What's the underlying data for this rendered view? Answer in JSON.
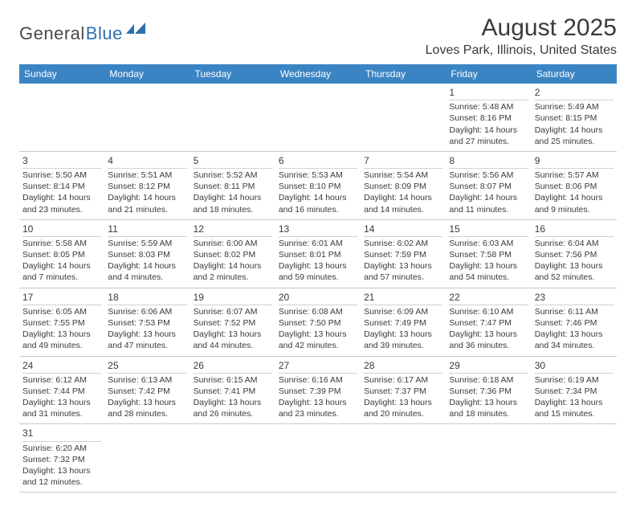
{
  "logo": {
    "dark": "General",
    "blue": "Blue"
  },
  "title": "August 2025",
  "location": "Loves Park, Illinois, United States",
  "header_bg": "#3b84c4",
  "header_fg": "#ffffff",
  "rule_color": "#2e5f93",
  "day_headers": [
    "Sunday",
    "Monday",
    "Tuesday",
    "Wednesday",
    "Thursday",
    "Friday",
    "Saturday"
  ],
  "weeks": [
    [
      {
        "day": "",
        "lines": [
          "",
          "",
          "",
          ""
        ]
      },
      {
        "day": "",
        "lines": [
          "",
          "",
          "",
          ""
        ]
      },
      {
        "day": "",
        "lines": [
          "",
          "",
          "",
          ""
        ]
      },
      {
        "day": "",
        "lines": [
          "",
          "",
          "",
          ""
        ]
      },
      {
        "day": "",
        "lines": [
          "",
          "",
          "",
          ""
        ]
      },
      {
        "day": "1",
        "lines": [
          "Sunrise: 5:48 AM",
          "Sunset: 8:16 PM",
          "Daylight: 14 hours",
          "and 27 minutes."
        ]
      },
      {
        "day": "2",
        "lines": [
          "Sunrise: 5:49 AM",
          "Sunset: 8:15 PM",
          "Daylight: 14 hours",
          "and 25 minutes."
        ]
      }
    ],
    [
      {
        "day": "3",
        "lines": [
          "Sunrise: 5:50 AM",
          "Sunset: 8:14 PM",
          "Daylight: 14 hours",
          "and 23 minutes."
        ]
      },
      {
        "day": "4",
        "lines": [
          "Sunrise: 5:51 AM",
          "Sunset: 8:12 PM",
          "Daylight: 14 hours",
          "and 21 minutes."
        ]
      },
      {
        "day": "5",
        "lines": [
          "Sunrise: 5:52 AM",
          "Sunset: 8:11 PM",
          "Daylight: 14 hours",
          "and 18 minutes."
        ]
      },
      {
        "day": "6",
        "lines": [
          "Sunrise: 5:53 AM",
          "Sunset: 8:10 PM",
          "Daylight: 14 hours",
          "and 16 minutes."
        ]
      },
      {
        "day": "7",
        "lines": [
          "Sunrise: 5:54 AM",
          "Sunset: 8:09 PM",
          "Daylight: 14 hours",
          "and 14 minutes."
        ]
      },
      {
        "day": "8",
        "lines": [
          "Sunrise: 5:56 AM",
          "Sunset: 8:07 PM",
          "Daylight: 14 hours",
          "and 11 minutes."
        ]
      },
      {
        "day": "9",
        "lines": [
          "Sunrise: 5:57 AM",
          "Sunset: 8:06 PM",
          "Daylight: 14 hours",
          "and 9 minutes."
        ]
      }
    ],
    [
      {
        "day": "10",
        "lines": [
          "Sunrise: 5:58 AM",
          "Sunset: 8:05 PM",
          "Daylight: 14 hours",
          "and 7 minutes."
        ]
      },
      {
        "day": "11",
        "lines": [
          "Sunrise: 5:59 AM",
          "Sunset: 8:03 PM",
          "Daylight: 14 hours",
          "and 4 minutes."
        ]
      },
      {
        "day": "12",
        "lines": [
          "Sunrise: 6:00 AM",
          "Sunset: 8:02 PM",
          "Daylight: 14 hours",
          "and 2 minutes."
        ]
      },
      {
        "day": "13",
        "lines": [
          "Sunrise: 6:01 AM",
          "Sunset: 8:01 PM",
          "Daylight: 13 hours",
          "and 59 minutes."
        ]
      },
      {
        "day": "14",
        "lines": [
          "Sunrise: 6:02 AM",
          "Sunset: 7:59 PM",
          "Daylight: 13 hours",
          "and 57 minutes."
        ]
      },
      {
        "day": "15",
        "lines": [
          "Sunrise: 6:03 AM",
          "Sunset: 7:58 PM",
          "Daylight: 13 hours",
          "and 54 minutes."
        ]
      },
      {
        "day": "16",
        "lines": [
          "Sunrise: 6:04 AM",
          "Sunset: 7:56 PM",
          "Daylight: 13 hours",
          "and 52 minutes."
        ]
      }
    ],
    [
      {
        "day": "17",
        "lines": [
          "Sunrise: 6:05 AM",
          "Sunset: 7:55 PM",
          "Daylight: 13 hours",
          "and 49 minutes."
        ]
      },
      {
        "day": "18",
        "lines": [
          "Sunrise: 6:06 AM",
          "Sunset: 7:53 PM",
          "Daylight: 13 hours",
          "and 47 minutes."
        ]
      },
      {
        "day": "19",
        "lines": [
          "Sunrise: 6:07 AM",
          "Sunset: 7:52 PM",
          "Daylight: 13 hours",
          "and 44 minutes."
        ]
      },
      {
        "day": "20",
        "lines": [
          "Sunrise: 6:08 AM",
          "Sunset: 7:50 PM",
          "Daylight: 13 hours",
          "and 42 minutes."
        ]
      },
      {
        "day": "21",
        "lines": [
          "Sunrise: 6:09 AM",
          "Sunset: 7:49 PM",
          "Daylight: 13 hours",
          "and 39 minutes."
        ]
      },
      {
        "day": "22",
        "lines": [
          "Sunrise: 6:10 AM",
          "Sunset: 7:47 PM",
          "Daylight: 13 hours",
          "and 36 minutes."
        ]
      },
      {
        "day": "23",
        "lines": [
          "Sunrise: 6:11 AM",
          "Sunset: 7:46 PM",
          "Daylight: 13 hours",
          "and 34 minutes."
        ]
      }
    ],
    [
      {
        "day": "24",
        "lines": [
          "Sunrise: 6:12 AM",
          "Sunset: 7:44 PM",
          "Daylight: 13 hours",
          "and 31 minutes."
        ]
      },
      {
        "day": "25",
        "lines": [
          "Sunrise: 6:13 AM",
          "Sunset: 7:42 PM",
          "Daylight: 13 hours",
          "and 28 minutes."
        ]
      },
      {
        "day": "26",
        "lines": [
          "Sunrise: 6:15 AM",
          "Sunset: 7:41 PM",
          "Daylight: 13 hours",
          "and 26 minutes."
        ]
      },
      {
        "day": "27",
        "lines": [
          "Sunrise: 6:16 AM",
          "Sunset: 7:39 PM",
          "Daylight: 13 hours",
          "and 23 minutes."
        ]
      },
      {
        "day": "28",
        "lines": [
          "Sunrise: 6:17 AM",
          "Sunset: 7:37 PM",
          "Daylight: 13 hours",
          "and 20 minutes."
        ]
      },
      {
        "day": "29",
        "lines": [
          "Sunrise: 6:18 AM",
          "Sunset: 7:36 PM",
          "Daylight: 13 hours",
          "and 18 minutes."
        ]
      },
      {
        "day": "30",
        "lines": [
          "Sunrise: 6:19 AM",
          "Sunset: 7:34 PM",
          "Daylight: 13 hours",
          "and 15 minutes."
        ]
      }
    ],
    [
      {
        "day": "31",
        "lines": [
          "Sunrise: 6:20 AM",
          "Sunset: 7:32 PM",
          "Daylight: 13 hours",
          "and 12 minutes."
        ]
      },
      {
        "day": "",
        "lines": [
          "",
          "",
          "",
          ""
        ]
      },
      {
        "day": "",
        "lines": [
          "",
          "",
          "",
          ""
        ]
      },
      {
        "day": "",
        "lines": [
          "",
          "",
          "",
          ""
        ]
      },
      {
        "day": "",
        "lines": [
          "",
          "",
          "",
          ""
        ]
      },
      {
        "day": "",
        "lines": [
          "",
          "",
          "",
          ""
        ]
      },
      {
        "day": "",
        "lines": [
          "",
          "",
          "",
          ""
        ]
      }
    ]
  ]
}
